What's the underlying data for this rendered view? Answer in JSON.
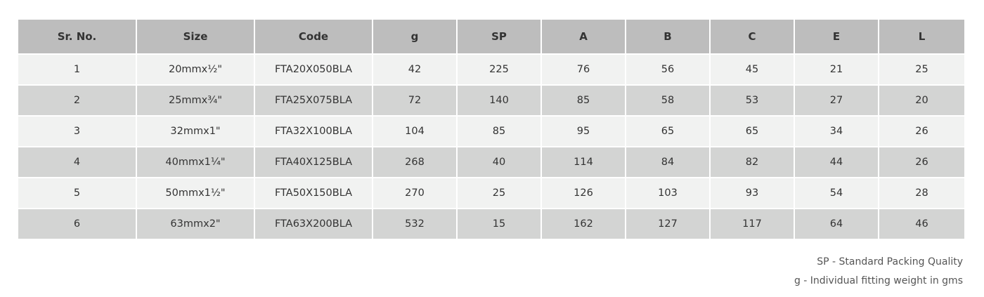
{
  "table": {
    "headers": [
      "Sr. No.",
      "Size",
      "Code",
      "g",
      "SP",
      "A",
      "B",
      "C",
      "E",
      "L"
    ],
    "rows": [
      [
        "1",
        "20mmx½\"",
        "FTA20X050BLA",
        "42",
        "225",
        "76",
        "56",
        "45",
        "21",
        "25"
      ],
      [
        "2",
        "25mmx¾\"",
        "FTA25X075BLA",
        "72",
        "140",
        "85",
        "58",
        "53",
        "27",
        "20"
      ],
      [
        "3",
        "32mmx1\"",
        "FTA32X100BLA",
        "104",
        "85",
        "95",
        "65",
        "65",
        "34",
        "26"
      ],
      [
        "4",
        "40mmx1¼\"",
        "FTA40X125BLA",
        "268",
        "40",
        "114",
        "84",
        "82",
        "44",
        "26"
      ],
      [
        "5",
        "50mmx1½\"",
        "FTA50X150BLA",
        "270",
        "25",
        "126",
        "103",
        "93",
        "54",
        "28"
      ],
      [
        "6",
        "63mmx2\"",
        "FTA63X200BLA",
        "532",
        "15",
        "162",
        "127",
        "117",
        "64",
        "46"
      ]
    ]
  },
  "notes": {
    "sp": "SP - Standard Packing Quality",
    "g": "g - Individual fitting weight in gms"
  }
}
